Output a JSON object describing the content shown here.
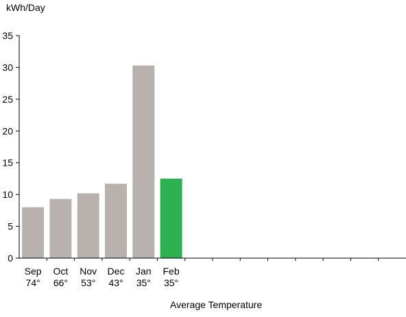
{
  "chart_data": {
    "type": "bar",
    "ylabel": "kWh/Day",
    "xlabel": "Average Temperature",
    "ylim": [
      0,
      35
    ],
    "yticks": [
      0,
      5,
      10,
      15,
      20,
      25,
      30,
      35
    ],
    "total_slots": 14,
    "categories": [
      "Sep",
      "Oct",
      "Nov",
      "Dec",
      "Jan",
      "Feb"
    ],
    "temperatures": [
      "74°",
      "66°",
      "53°",
      "43°",
      "35°",
      "35°"
    ],
    "values": [
      8.0,
      9.3,
      10.2,
      11.7,
      30.3,
      12.5
    ],
    "colors": {
      "bar": "#b8b1ae",
      "highlight_bar": "#2eb150",
      "axis": "#000000"
    },
    "highlight_index": 5
  }
}
